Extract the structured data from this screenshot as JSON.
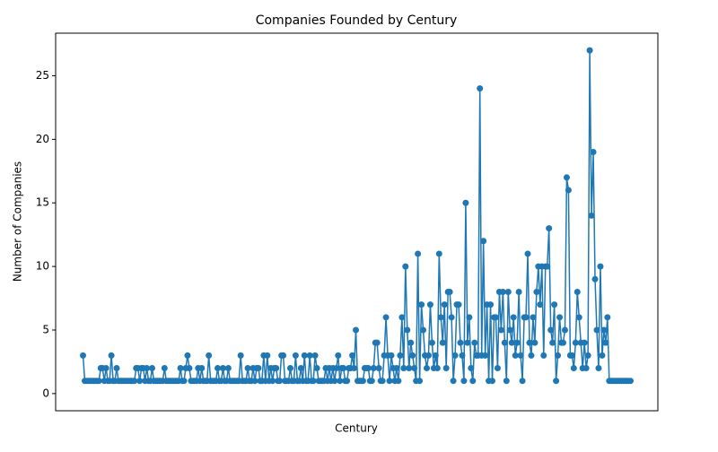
{
  "chart_data": {
    "type": "line",
    "title": "Companies Founded by Century",
    "xlabel": "Century",
    "ylabel": "Number of Companies",
    "series": [
      {
        "name": null,
        "color": "#1f77b4",
        "values": [
          3,
          1,
          1,
          1,
          1,
          1,
          1,
          1,
          1,
          1,
          2,
          2,
          1,
          2,
          1,
          1,
          3,
          1,
          1,
          2,
          1,
          1,
          1,
          1,
          1,
          1,
          1,
          1,
          1,
          1,
          2,
          2,
          1,
          2,
          2,
          1,
          2,
          1,
          1,
          2,
          1,
          1,
          1,
          1,
          1,
          1,
          2,
          1,
          1,
          1,
          1,
          1,
          1,
          1,
          1,
          2,
          1,
          1,
          2,
          3,
          2,
          1,
          1,
          1,
          1,
          2,
          1,
          2,
          1,
          1,
          1,
          3,
          1,
          1,
          1,
          1,
          2,
          1,
          1,
          2,
          1,
          1,
          2,
          1,
          1,
          1,
          1,
          1,
          1,
          3,
          1,
          1,
          1,
          2,
          1,
          1,
          2,
          1,
          2,
          2,
          1,
          1,
          3,
          1,
          3,
          1,
          2,
          1,
          2,
          2,
          1,
          1,
          3,
          3,
          1,
          1,
          1,
          2,
          1,
          1,
          3,
          1,
          1,
          2,
          1,
          3,
          1,
          1,
          3,
          1,
          1,
          3,
          2,
          1,
          1,
          1,
          1,
          2,
          1,
          2,
          1,
          2,
          1,
          2,
          3,
          1,
          2,
          2,
          1,
          1,
          2,
          2,
          3,
          2,
          5,
          1,
          1,
          1,
          1,
          2,
          2,
          2,
          1,
          1,
          2,
          4,
          4,
          2,
          1,
          1,
          3,
          6,
          3,
          1,
          3,
          2,
          1,
          2,
          1,
          3,
          6,
          2,
          10,
          5,
          2,
          4,
          3,
          2,
          1,
          11,
          1,
          7,
          5,
          3,
          2,
          3,
          7,
          4,
          2,
          3,
          2,
          11,
          6,
          4,
          7,
          2,
          8,
          8,
          6,
          1,
          3,
          7,
          7,
          4,
          3,
          1,
          15,
          4,
          6,
          2,
          1,
          4,
          3,
          3,
          24,
          3,
          12,
          3,
          7,
          1,
          7,
          1,
          6,
          6,
          2,
          8,
          5,
          8,
          4,
          1,
          8,
          5,
          4,
          6,
          3,
          4,
          8,
          3,
          1,
          6,
          6,
          11,
          4,
          3,
          6,
          4,
          8,
          10,
          7,
          10,
          3,
          10,
          10,
          13,
          5,
          4,
          7,
          1,
          3,
          6,
          4,
          4,
          5,
          17,
          16,
          3,
          3,
          2,
          4,
          8,
          6,
          4,
          2,
          4,
          2,
          3,
          27,
          14,
          19,
          9,
          5,
          2,
          10,
          3,
          5,
          4,
          6,
          1,
          1,
          1,
          1,
          1,
          1,
          1,
          1,
          1,
          1,
          1,
          1,
          1
        ]
      }
    ],
    "ylim": [
      -1.35,
      28.35
    ],
    "yticks": [
      0,
      5,
      10,
      15,
      20,
      25
    ],
    "grid": false
  }
}
